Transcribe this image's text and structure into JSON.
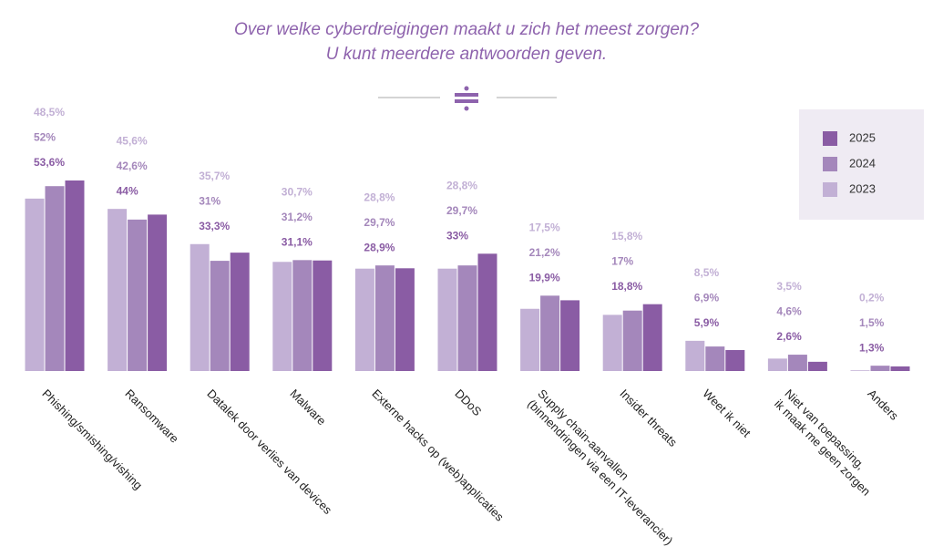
{
  "chart_data": {
    "type": "bar",
    "title": "Over welke cyberdreigingen maakt u zich het meest zorgen?",
    "subtitle": "U kunt meerdere antwoorden geven.",
    "categories": [
      "Phishing/smishing/vishing",
      "Ransomware",
      "Datalek door verlies van devices",
      "Malware",
      "Externe hacks op (web)applicaties",
      "DDoS",
      "Supply chain-aanvallen\n(binnendringen via een IT-leverancier)",
      "Insider threats",
      "Weet ik niet",
      "Niet van toepassing,\nik maak me geen zorgen",
      "Anders"
    ],
    "series": [
      {
        "name": "2025",
        "color": "#8a5ca4",
        "values": [
          53.6,
          44,
          33.3,
          31.1,
          28.9,
          33,
          19.9,
          18.8,
          5.9,
          2.6,
          1.3
        ],
        "value_labels": [
          "53,6%",
          "44%",
          "33,3%",
          "31,1%",
          "28,9%",
          "33%",
          "19,9%",
          "18,8%",
          "5,9%",
          "2,6%",
          "1,3%"
        ]
      },
      {
        "name": "2024",
        "color": "#a487bb",
        "values": [
          52,
          42.6,
          31,
          31.2,
          29.7,
          29.7,
          21.2,
          17,
          6.9,
          4.6,
          1.5
        ],
        "value_labels": [
          "52%",
          "42,6%",
          "31%",
          "31,2%",
          "29,7%",
          "29,7%",
          "21,2%",
          "17%",
          "6,9%",
          "4,6%",
          "1,5%"
        ]
      },
      {
        "name": "2023",
        "color": "#c2b0d5",
        "values": [
          48.5,
          45.6,
          35.7,
          30.7,
          28.8,
          28.8,
          17.5,
          15.8,
          8.5,
          3.5,
          0.2
        ],
        "value_labels": [
          "48,5%",
          "45,6%",
          "35,7%",
          "30,7%",
          "28,8%",
          "28,8%",
          "17,5%",
          "15,8%",
          "8,5%",
          "3,5%",
          "0,2%"
        ]
      }
    ],
    "legend": "top-right"
  }
}
